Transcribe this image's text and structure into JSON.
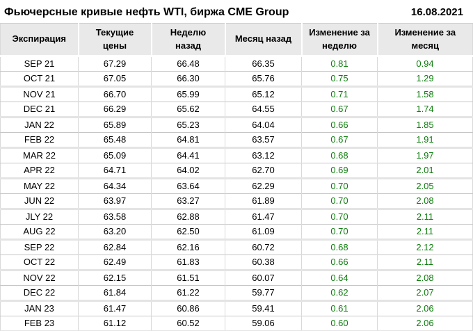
{
  "header": {
    "title": "Фьючерсные кривые нефть WTI, биржа CME Group",
    "date": "16.08.2021"
  },
  "colors": {
    "positive": "#0e7d0e",
    "header_bg": "#e9e9e9",
    "grid_thin": "#c6c6c6",
    "grid_thick": "#e4e4e4",
    "text": "#000000"
  },
  "chart_data": {
    "type": "table",
    "title": "Фьючерсные кривые нефть WTI, биржа CME Group",
    "date": "16.08.2021",
    "columns": [
      "Экспирация",
      "Текущие цены",
      "Неделю назад",
      "Месяц назад",
      "Изменение за неделю",
      "Изменение за месяц"
    ],
    "positive_columns": [
      4,
      5
    ],
    "rows": [
      [
        "SEP 21",
        "67.29",
        "66.48",
        "66.35",
        "0.81",
        "0.94"
      ],
      [
        "OCT 21",
        "67.05",
        "66.30",
        "65.76",
        "0.75",
        "1.29"
      ],
      [
        "NOV 21",
        "66.70",
        "65.99",
        "65.12",
        "0.71",
        "1.58"
      ],
      [
        "DEC 21",
        "66.29",
        "65.62",
        "64.55",
        "0.67",
        "1.74"
      ],
      [
        "JAN 22",
        "65.89",
        "65.23",
        "64.04",
        "0.66",
        "1.85"
      ],
      [
        "FEB 22",
        "65.48",
        "64.81",
        "63.57",
        "0.67",
        "1.91"
      ],
      [
        "MAR 22",
        "65.09",
        "64.41",
        "63.12",
        "0.68",
        "1.97"
      ],
      [
        "APR 22",
        "64.71",
        "64.02",
        "62.70",
        "0.69",
        "2.01"
      ],
      [
        "MAY 22",
        "64.34",
        "63.64",
        "62.29",
        "0.70",
        "2.05"
      ],
      [
        "JUN 22",
        "63.97",
        "63.27",
        "61.89",
        "0.70",
        "2.08"
      ],
      [
        "JLY 22",
        "63.58",
        "62.88",
        "61.47",
        "0.70",
        "2.11"
      ],
      [
        "AUG 22",
        "63.20",
        "62.50",
        "61.09",
        "0.70",
        "2.11"
      ],
      [
        "SEP 22",
        "62.84",
        "62.16",
        "60.72",
        "0.68",
        "2.12"
      ],
      [
        "OCT 22",
        "62.49",
        "61.83",
        "60.38",
        "0.66",
        "2.11"
      ],
      [
        "NOV 22",
        "62.15",
        "61.51",
        "60.07",
        "0.64",
        "2.08"
      ],
      [
        "DEC 22",
        "61.84",
        "61.22",
        "59.77",
        "0.62",
        "2.07"
      ],
      [
        "JAN 23",
        "61.47",
        "60.86",
        "59.41",
        "0.61",
        "2.06"
      ],
      [
        "FEB 23",
        "61.12",
        "60.52",
        "59.06",
        "0.60",
        "2.06"
      ]
    ]
  }
}
